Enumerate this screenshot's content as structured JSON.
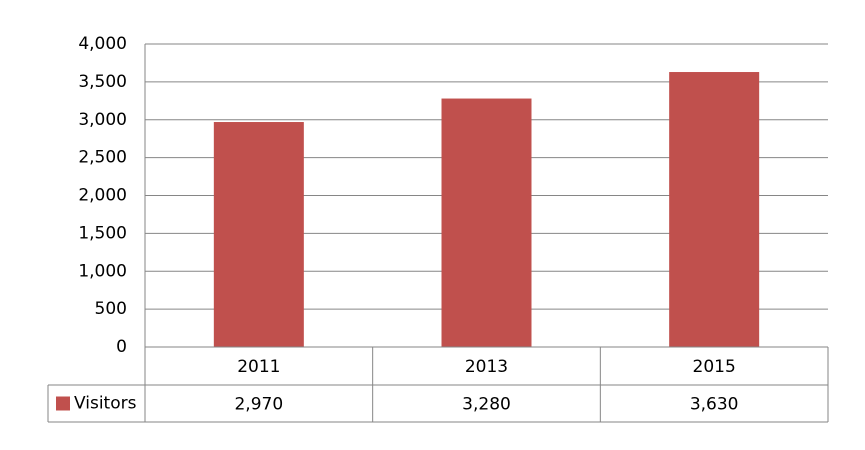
{
  "chart_data": {
    "type": "bar",
    "categories": [
      "2011",
      "2013",
      "2015"
    ],
    "series": [
      {
        "name": "Visitors",
        "color": "#c0504d",
        "values": [
          2970,
          3280,
          3630
        ],
        "value_labels": [
          "2,970",
          "3,280",
          "3,630"
        ]
      }
    ],
    "ylim": [
      0,
      4000
    ],
    "yticks": [
      0,
      500,
      {
        "value": 1000,
        "label": "1,000"
      },
      {
        "value": 1500,
        "label": "1,500"
      },
      {
        "value": 2000,
        "label": "2,000"
      },
      {
        "value": 2500,
        "label": "2,500"
      },
      {
        "value": 3000,
        "label": "3,000"
      },
      {
        "value": 3500,
        "label": "3,500"
      },
      {
        "value": 4000,
        "label": "4,000"
      }
    ],
    "grid": true,
    "data_table": true
  }
}
